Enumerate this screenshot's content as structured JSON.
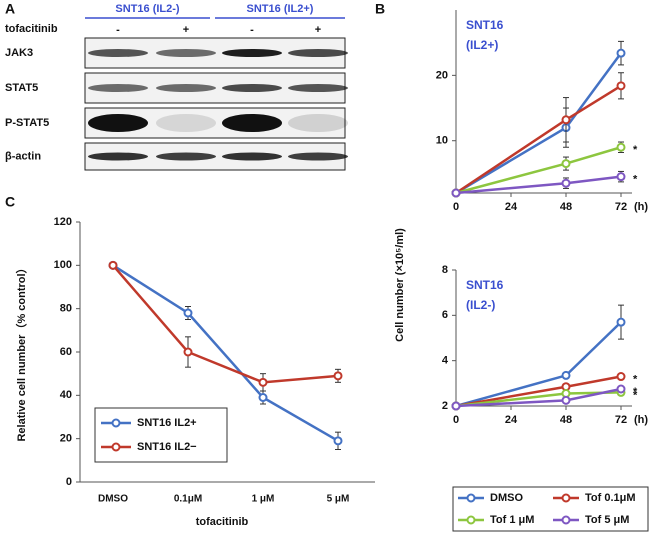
{
  "panel_labels": [
    "A",
    "B",
    "C"
  ],
  "blot": {
    "groups": [
      "SNT16 (IL2-)",
      "SNT16 (IL2+)"
    ],
    "treatment_label": "tofacitinib",
    "treatments": [
      "-",
      "+",
      "-",
      "+"
    ],
    "rows": [
      "JAK3",
      "STAT5",
      "P-STAT5",
      "β-actin"
    ]
  },
  "chart_data": [
    {
      "type": "line",
      "title": [
        "SNT16",
        "(IL2+)"
      ],
      "y_label": "Cell number (×10⁵/ml)",
      "x_unit": "(h)",
      "x": [
        0,
        48,
        72
      ],
      "xlim": [
        0,
        72
      ],
      "xticks": [
        0,
        24,
        48,
        72
      ],
      "ylim": [
        2,
        30
      ],
      "yticks": [
        10,
        20
      ],
      "series": [
        {
          "name": "DMSO",
          "color": "#4472c4",
          "values": [
            2,
            12,
            23.4
          ],
          "errors": [
            0,
            3,
            1.8
          ]
        },
        {
          "name": "Tof 0.1μM",
          "color": "#c0392b",
          "values": [
            2,
            13.2,
            18.4
          ],
          "errors": [
            0,
            3.4,
            2
          ]
        },
        {
          "name": "Tof 1 μM",
          "color": "#8dc63f",
          "values": [
            2,
            6.5,
            9
          ],
          "errors": [
            0,
            1,
            0.8
          ],
          "annotation": "*"
        },
        {
          "name": "Tof 5 μM",
          "color": "#7e57c2",
          "values": [
            2,
            3.5,
            4.5
          ],
          "errors": [
            0,
            0.8,
            0.8
          ],
          "annotation": "*"
        }
      ]
    },
    {
      "type": "line",
      "title": [
        "SNT16",
        "(IL2-)"
      ],
      "x_unit": "(h)",
      "x": [
        0,
        48,
        72
      ],
      "xlim": [
        0,
        72
      ],
      "xticks": [
        0,
        24,
        48,
        72
      ],
      "ylim": [
        2,
        8
      ],
      "yticks": [
        2,
        4,
        6,
        8
      ],
      "series": [
        {
          "color": "#4472c4",
          "values": [
            2,
            3.35,
            5.7
          ],
          "errors": [
            0,
            0.05,
            0.75
          ]
        },
        {
          "color": "#c0392b",
          "values": [
            2,
            2.85,
            3.3
          ],
          "errors": [
            0,
            0.05,
            0.05
          ],
          "annotation": "*"
        },
        {
          "color": "#8dc63f",
          "values": [
            2,
            2.55,
            2.6
          ],
          "errors": [
            0,
            0.05,
            0.05
          ],
          "annotation": "*"
        },
        {
          "color": "#7e57c2",
          "values": [
            2,
            2.25,
            2.75
          ],
          "errors": [
            0,
            0.05,
            0.05
          ],
          "annotation": "*"
        }
      ]
    },
    {
      "type": "line",
      "y_label": "Relative cell number（% control）",
      "x_label": "tofacitinib",
      "categories": [
        "DMSO",
        "0.1μM",
        "1 μM",
        "5 μM"
      ],
      "ylim": [
        0,
        120
      ],
      "yticks": [
        0,
        20,
        40,
        60,
        80,
        100,
        120
      ],
      "series": [
        {
          "name": "SNT16 IL2+",
          "color": "#4472c4",
          "values": [
            100,
            78,
            39,
            19
          ],
          "errors": [
            0,
            3,
            3,
            4
          ]
        },
        {
          "name": "SNT16 IL2−",
          "color": "#c0392b",
          "values": [
            100,
            60,
            46,
            49
          ],
          "errors": [
            0,
            7,
            4,
            3
          ]
        }
      ]
    }
  ]
}
